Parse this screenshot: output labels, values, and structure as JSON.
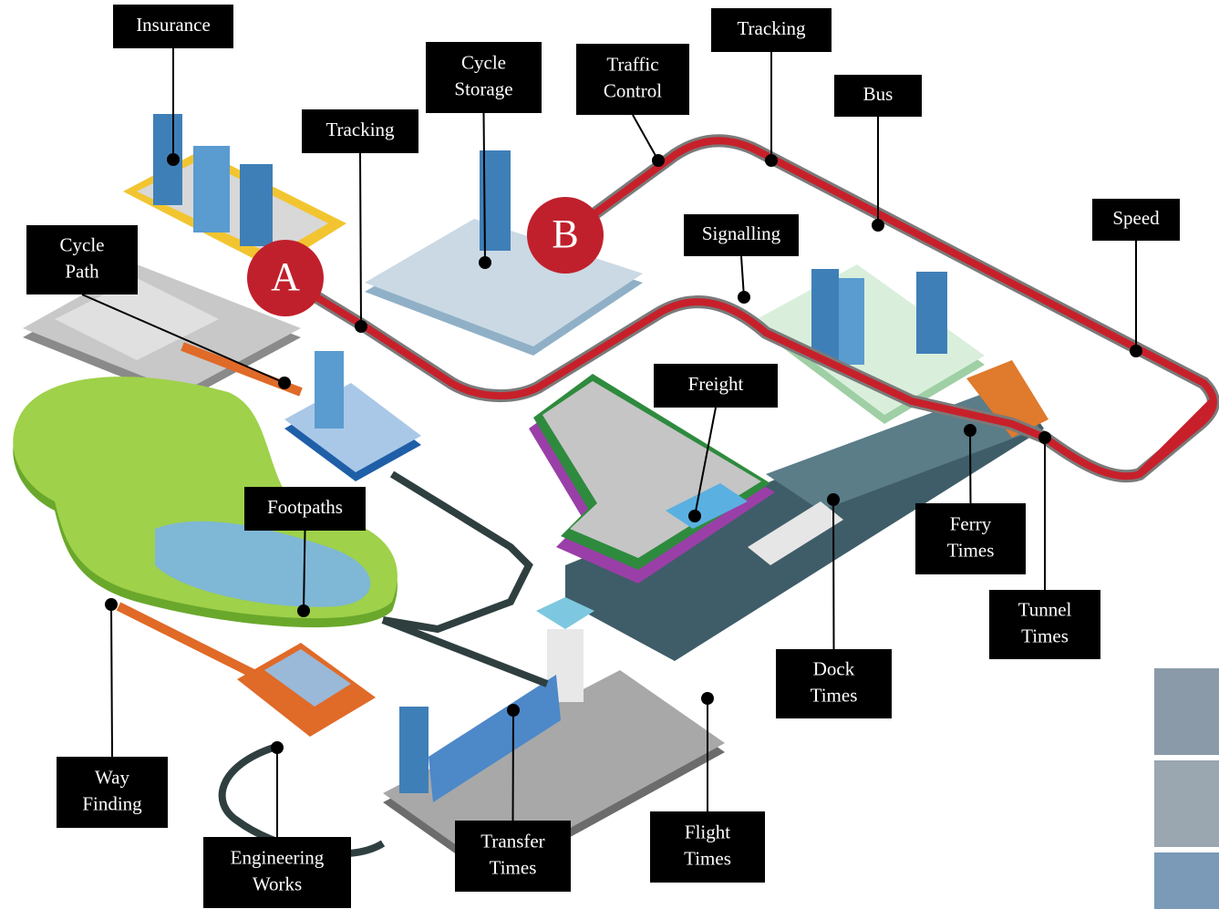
{
  "labels": [
    {
      "lines": [
        "Insurance"
      ]
    },
    {
      "lines": [
        "Cycle",
        "Storage"
      ]
    },
    {
      "lines": [
        "Traffic",
        "Control"
      ]
    },
    {
      "lines": [
        "Tracking"
      ]
    },
    {
      "lines": [
        "Bus"
      ]
    },
    {
      "lines": [
        "Speed"
      ]
    },
    {
      "lines": [
        "Tracking"
      ]
    },
    {
      "lines": [
        "Cycle",
        "Path"
      ]
    },
    {
      "lines": [
        "Signalling"
      ]
    },
    {
      "lines": [
        "Freight"
      ]
    },
    {
      "lines": [
        "Footpaths"
      ]
    },
    {
      "lines": [
        "Ferry",
        "Times"
      ]
    },
    {
      "lines": [
        "Tunnel",
        "Times"
      ]
    },
    {
      "lines": [
        "Dock",
        "Times"
      ]
    },
    {
      "lines": [
        "Way",
        "Finding"
      ]
    },
    {
      "lines": [
        "Engineering",
        "Works"
      ]
    },
    {
      "lines": [
        "Transfer",
        "Times"
      ]
    },
    {
      "lines": [
        "Flight",
        "Times"
      ]
    }
  ],
  "markers": [
    "A",
    "B"
  ]
}
